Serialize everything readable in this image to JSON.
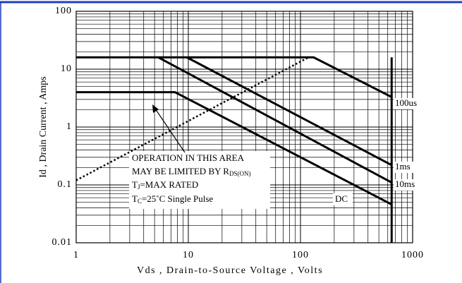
{
  "chart_data": {
    "type": "line",
    "xlabel": "Vds , Drain-to-Source Voltage , Volts",
    "ylabel": "Id , Drain Current , Amps",
    "xlog": true,
    "ylog": true,
    "grid": true,
    "minor_grid": true,
    "xlim": [
      1,
      1000
    ],
    "ylim": [
      0.01,
      100
    ],
    "xticks": [
      1,
      10,
      100,
      1000
    ],
    "yticks": [
      0.01,
      0.1,
      1,
      10,
      100
    ],
    "series": [
      {
        "name": "100us",
        "color": "#000000",
        "style": "solid",
        "x": [
          1,
          131,
          650
        ],
        "values": [
          16,
          16,
          3.3
        ]
      },
      {
        "name": "1ms",
        "color": "#000000",
        "style": "solid",
        "x": [
          9.7,
          650
        ],
        "values": [
          16,
          0.22
        ]
      },
      {
        "name": "10ms",
        "color": "#000000",
        "style": "solid",
        "x": [
          5.4,
          650
        ],
        "values": [
          16,
          0.11
        ]
      },
      {
        "name": "DC",
        "color": "#000000",
        "style": "solid",
        "x": [
          1,
          7.6,
          650
        ],
        "values": [
          4,
          4,
          0.046
        ]
      },
      {
        "color": "#000000",
        "style": "dotted",
        "x": [
          1,
          118
        ],
        "values": [
          0.12,
          16
        ]
      },
      {
        "color": "#000000",
        "style": "solid",
        "x": [
          650,
          650
        ],
        "values": [
          16,
          0.01
        ]
      }
    ],
    "annotation": {
      "lines": [
        "OPERATION IN THIS AREA",
        "MAY BE LIMITED BY R",
        "T",
        "T"
      ],
      "subs": [
        "DS(ON)",
        "J",
        "C"
      ],
      "rest": [
        "=MAX RATED",
        "=25˚C  Single Pulse"
      ]
    }
  }
}
